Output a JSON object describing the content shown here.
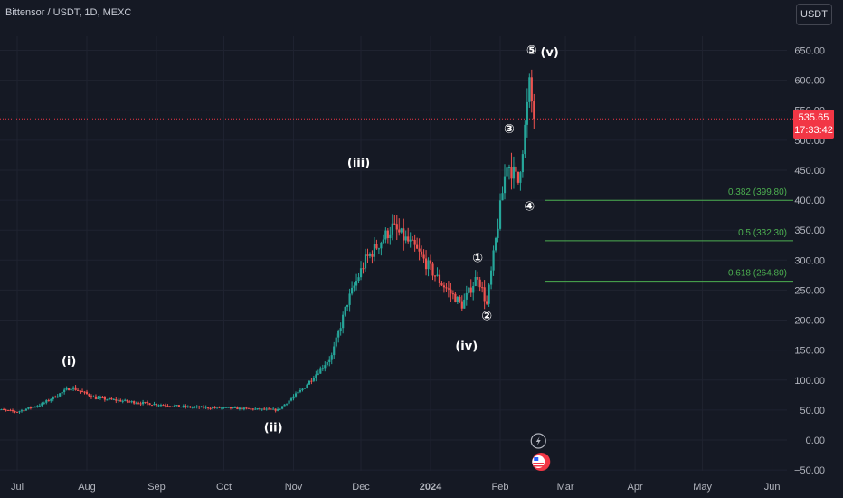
{
  "header": {
    "symbol": "Bittensor / USDT, 1D, MEXC",
    "currency_button": "USDT"
  },
  "last_price": {
    "value": "535.65",
    "countdown": "17:33:42",
    "color": "#f23645"
  },
  "colors": {
    "background": "#151924",
    "grid": "#1f2330",
    "up": "#26a69a",
    "down": "#ef5350",
    "fib": "#4caf50",
    "text": "#d1d4dc"
  },
  "chart_data": {
    "type": "candlestick",
    "title": "Bittensor / USDT, 1D, MEXC",
    "ylim": [
      -50,
      680
    ],
    "y_ticks": [
      650,
      600,
      550,
      500,
      450,
      400,
      350,
      300,
      250,
      200,
      150,
      100,
      50,
      0,
      -50
    ],
    "y_tick_labels": [
      "650.00",
      "600.00",
      "550.00",
      "500.00",
      "450.00",
      "400.00",
      "350.00",
      "300.00",
      "250.00",
      "200.00",
      "150.00",
      "100.00",
      "50.00",
      "0.00",
      "−50.00"
    ],
    "x_labels": [
      "Jul",
      "Aug",
      "Sep",
      "Oct",
      "Nov",
      "Dec",
      "2024",
      "Feb",
      "Mar",
      "Apr",
      "May",
      "Jun"
    ],
    "x_label_bold": [
      "2024"
    ],
    "price_series_keypoints": [
      {
        "date": "2023-06-20",
        "price": 52
      },
      {
        "date": "2023-07-01",
        "price": 47
      },
      {
        "date": "2023-07-12",
        "price": 60
      },
      {
        "date": "2023-07-25",
        "price": 88
      },
      {
        "date": "2023-08-05",
        "price": 70
      },
      {
        "date": "2023-08-25",
        "price": 62
      },
      {
        "date": "2023-09-15",
        "price": 55
      },
      {
        "date": "2023-10-05",
        "price": 53
      },
      {
        "date": "2023-10-25",
        "price": 50
      },
      {
        "date": "2023-11-05",
        "price": 85
      },
      {
        "date": "2023-11-18",
        "price": 140
      },
      {
        "date": "2023-11-25",
        "price": 230
      },
      {
        "date": "2023-12-03",
        "price": 300
      },
      {
        "date": "2023-12-15",
        "price": 355
      },
      {
        "date": "2023-12-25",
        "price": 320
      },
      {
        "date": "2024-01-05",
        "price": 265
      },
      {
        "date": "2024-01-15",
        "price": 225
      },
      {
        "date": "2024-01-22",
        "price": 275
      },
      {
        "date": "2024-01-26",
        "price": 225
      },
      {
        "date": "2024-01-31",
        "price": 360
      },
      {
        "date": "2024-02-04",
        "price": 465
      },
      {
        "date": "2024-02-09",
        "price": 430
      },
      {
        "date": "2024-02-12",
        "price": 520
      },
      {
        "date": "2024-02-14",
        "price": 590
      },
      {
        "date": "2024-02-16",
        "price": 535.65
      }
    ],
    "fibonacci_levels": [
      {
        "label": "0.382 (399.80)",
        "value": 399.8
      },
      {
        "label": "0.5 (332.30)",
        "value": 332.3
      },
      {
        "label": "0.618 (264.80)",
        "value": 264.8
      }
    ],
    "wave_labels": [
      {
        "text": "(i)",
        "date": "2023-07-24",
        "price": 125
      },
      {
        "text": "(ii)",
        "date": "2023-10-23",
        "price": 14
      },
      {
        "text": "(iii)",
        "date": "2023-11-30",
        "price": 456
      },
      {
        "text": "(iv)",
        "date": "2024-01-17",
        "price": 150
      },
      {
        "text": "(v)",
        "date": "2024-02-23",
        "price": 640
      },
      {
        "text": "①",
        "date": "2024-01-22",
        "price": 297
      },
      {
        "text": "②",
        "date": "2024-01-26",
        "price": 200
      },
      {
        "text": "③",
        "date": "2024-02-05",
        "price": 512
      },
      {
        "text": "④",
        "date": "2024-02-14",
        "price": 383
      },
      {
        "text": "⑤",
        "date": "2024-02-15",
        "price": 643
      }
    ]
  }
}
